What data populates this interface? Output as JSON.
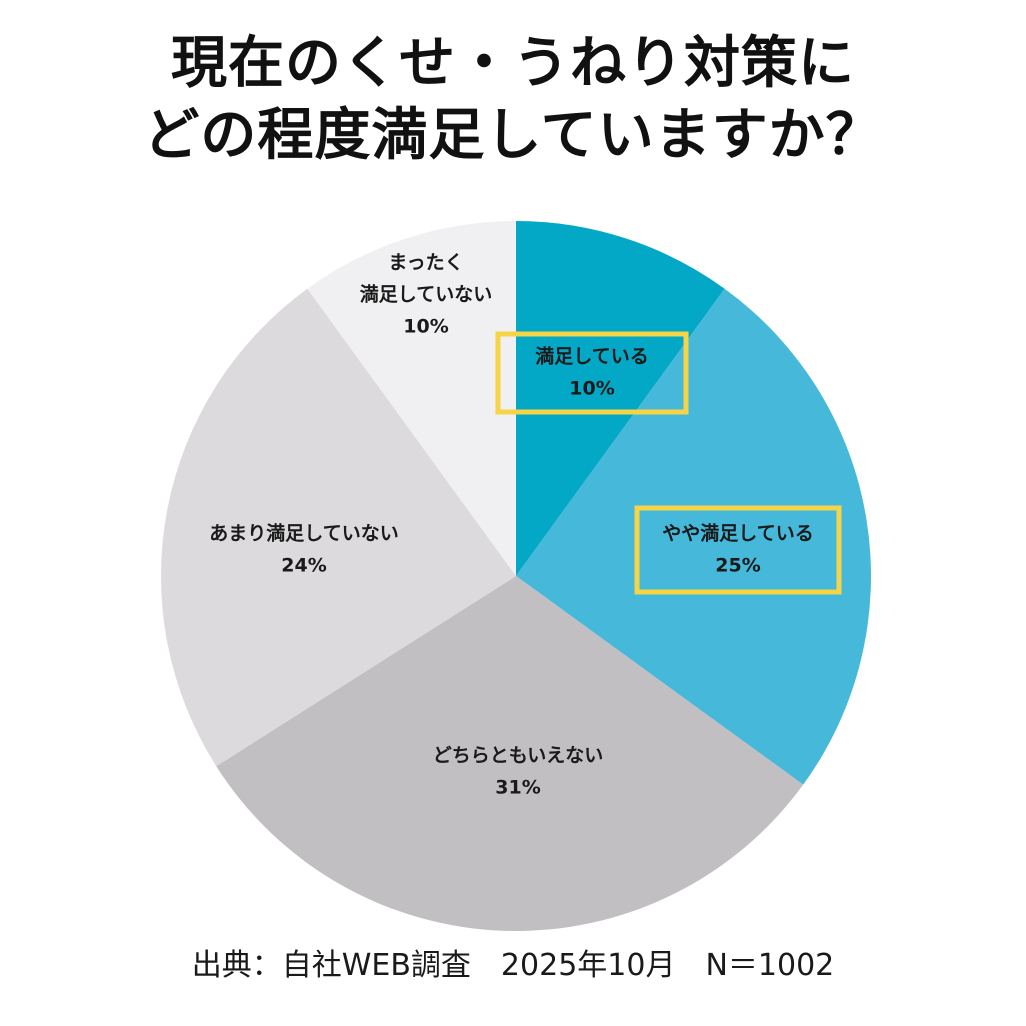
{
  "title": {
    "line1": "現在のくせ・うねり対策に",
    "line2": "どの程度満足していますか？"
  },
  "chart_data": {
    "type": "pie",
    "start_direction": "top, clockwise",
    "slices": [
      {
        "label_lines": [
          "満足している"
        ],
        "value": 10,
        "value_text": "10%",
        "color": "#03a8c6",
        "highlight": true
      },
      {
        "label_lines": [
          "やや満足している"
        ],
        "value": 25,
        "value_text": "25%",
        "color": "#46b8da",
        "highlight": true
      },
      {
        "label_lines": [
          "どちらともいえない"
        ],
        "value": 31,
        "value_text": "31%",
        "color": "#c1bfc2",
        "highlight": false
      },
      {
        "label_lines": [
          "あまり満足していない"
        ],
        "value": 24,
        "value_text": "24%",
        "color": "#dcdadc",
        "highlight": false
      },
      {
        "label_lines": [
          "まったく",
          "満足していない"
        ],
        "value": 10,
        "value_text": "10%",
        "color": "#f0eff1",
        "highlight": false
      }
    ],
    "highlight_color": "#f5d547",
    "legend": "none"
  },
  "source": "出典：自社WEB調査　2025年10月　N＝1002"
}
